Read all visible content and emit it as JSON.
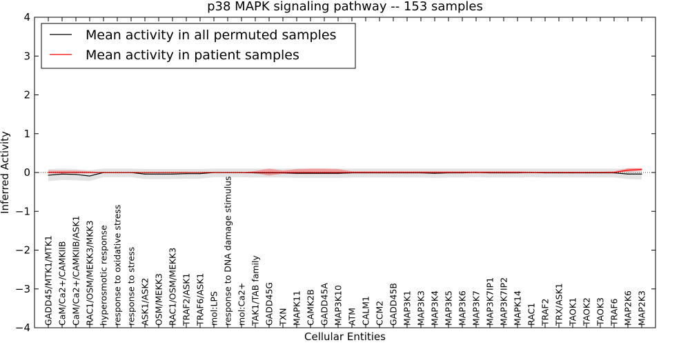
{
  "chart_data": {
    "type": "line",
    "title": "p38 MAPK signaling pathway -- 153 samples",
    "xlabel": "Cellular Entities",
    "ylabel": "Inferred Activity",
    "ylim": [
      -4,
      4
    ],
    "yticks": [
      "−4",
      "−3",
      "−2",
      "−1",
      "0",
      "1",
      "2",
      "3",
      "4"
    ],
    "legend_position": "top-left",
    "categories": [
      "GADD45/MTK1/MTK1",
      "CaM/Ca2+/CAMKIIB",
      "CaM/Ca2+/CAMKIIB/ASK1",
      "RAC1/OSM/MEKK3/MKK3",
      "hyperosmotic response",
      "response to oxidative stress",
      "response to stress",
      "ASK1/ASK2",
      "OSM/MEKK3",
      "RAC1/OSM/MEKK3",
      "TRAF2/ASK1",
      "TRAF6/ASK1",
      "mol:LPS",
      "response to DNA damage stimulus",
      "mol:Ca2+",
      "TAK1/TAB family",
      "GADD45G",
      "TXN",
      "MAPK11",
      "CAMK2B",
      "GADD45A",
      "MAP3K10",
      "ATM",
      "CALM1",
      "CCM2",
      "GADD45B",
      "MAP3K1",
      "MAP3K3",
      "MAP3K4",
      "MAP3K5",
      "MAP3K6",
      "MAP3K7",
      "MAP3K7IP1",
      "MAP3K7IP2",
      "MAPK14",
      "RAC1",
      "TRAF2",
      "TRX/ASK1",
      "TAOK1",
      "TAOK2",
      "TAOK3",
      "TRAF6",
      "MAP2K6",
      "MAP2K3"
    ],
    "series": [
      {
        "name": "Mean activity in all permuted samples",
        "color": "#000000",
        "band_color": "#cccccc",
        "values": [
          -0.07,
          -0.04,
          -0.05,
          -0.09,
          0.0,
          0.0,
          0.0,
          -0.04,
          -0.04,
          -0.04,
          -0.03,
          -0.03,
          0.0,
          0.0,
          0.0,
          -0.01,
          -0.01,
          -0.01,
          -0.02,
          -0.02,
          -0.02,
          -0.02,
          -0.01,
          -0.01,
          -0.01,
          -0.01,
          -0.01,
          -0.01,
          -0.02,
          -0.01,
          -0.01,
          0.0,
          -0.01,
          -0.01,
          -0.01,
          0.0,
          -0.01,
          -0.01,
          -0.01,
          -0.01,
          -0.01,
          -0.01,
          -0.04,
          -0.04
        ],
        "lower": [
          -0.22,
          -0.19,
          -0.2,
          -0.22,
          -0.12,
          -0.12,
          -0.12,
          -0.17,
          -0.17,
          -0.17,
          -0.16,
          -0.16,
          -0.12,
          -0.12,
          -0.12,
          -0.13,
          -0.13,
          -0.13,
          -0.14,
          -0.14,
          -0.14,
          -0.14,
          -0.13,
          -0.13,
          -0.13,
          -0.13,
          -0.13,
          -0.13,
          -0.14,
          -0.13,
          -0.13,
          -0.12,
          -0.13,
          -0.13,
          -0.13,
          -0.12,
          -0.13,
          -0.13,
          -0.13,
          -0.13,
          -0.13,
          -0.13,
          -0.17,
          -0.18
        ],
        "upper": [
          0.09,
          0.1,
          0.09,
          0.06,
          0.1,
          0.1,
          0.1,
          0.09,
          0.09,
          0.09,
          0.09,
          0.09,
          0.1,
          0.1,
          0.1,
          0.1,
          0.1,
          0.1,
          0.1,
          0.1,
          0.1,
          0.1,
          0.1,
          0.1,
          0.1,
          0.1,
          0.1,
          0.1,
          0.1,
          0.1,
          0.1,
          0.1,
          0.1,
          0.1,
          0.1,
          0.1,
          0.1,
          0.1,
          0.1,
          0.1,
          0.1,
          0.1,
          0.09,
          0.1
        ]
      },
      {
        "name": "Mean activity in patient samples",
        "color": "#ff0000",
        "band_color": "#f08080",
        "values": [
          0.0,
          0.0,
          0.0,
          0.0,
          0.0,
          0.0,
          0.0,
          0.0,
          0.0,
          0.0,
          0.0,
          0.0,
          0.0,
          0.0,
          0.0,
          0.0,
          0.0,
          0.0,
          0.0,
          0.0,
          0.0,
          0.0,
          0.0,
          0.0,
          0.0,
          0.0,
          0.0,
          0.0,
          0.0,
          0.0,
          0.0,
          0.0,
          0.0,
          0.0,
          0.0,
          0.0,
          0.0,
          0.0,
          0.0,
          0.0,
          0.0,
          0.0,
          0.06,
          0.08
        ],
        "lower": [
          -0.02,
          -0.02,
          -0.02,
          -0.01,
          0.0,
          0.0,
          0.0,
          0.0,
          0.0,
          0.0,
          0.0,
          0.0,
          0.0,
          0.0,
          0.0,
          -0.02,
          -0.08,
          -0.03,
          -0.04,
          -0.04,
          -0.04,
          -0.04,
          -0.01,
          -0.01,
          -0.01,
          -0.01,
          -0.01,
          -0.01,
          -0.01,
          -0.01,
          -0.01,
          -0.01,
          -0.01,
          -0.01,
          -0.01,
          0.0,
          0.0,
          0.0,
          0.0,
          0.0,
          0.0,
          0.0,
          0.02,
          0.05
        ],
        "upper": [
          0.05,
          0.05,
          0.05,
          0.03,
          0.0,
          0.0,
          0.0,
          0.0,
          0.0,
          0.0,
          0.0,
          0.0,
          0.0,
          0.0,
          0.0,
          0.04,
          0.1,
          0.05,
          0.09,
          0.1,
          0.1,
          0.09,
          0.03,
          0.03,
          0.03,
          0.03,
          0.03,
          0.03,
          0.03,
          0.03,
          0.03,
          0.03,
          0.03,
          0.03,
          0.03,
          0.02,
          0.02,
          0.02,
          0.02,
          0.02,
          0.02,
          0.03,
          0.11,
          0.11
        ]
      }
    ]
  }
}
